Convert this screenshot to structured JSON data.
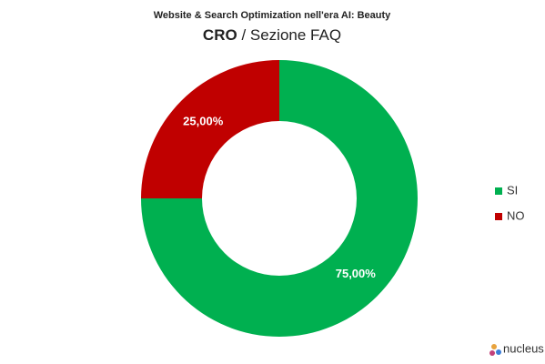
{
  "chart_data": {
    "type": "donut",
    "title": "Website & Search Optimization nell'era AI: Beauty",
    "subtitle_bold": "CRO",
    "subtitle": "/ Sezione FAQ",
    "categories": [
      "SI",
      "NO"
    ],
    "values": [
      75,
      25
    ],
    "value_labels": [
      "75,00%",
      "25,00%"
    ],
    "colors": [
      "#00b050",
      "#c00000"
    ],
    "legend": "right"
  },
  "logo": "nucleus"
}
